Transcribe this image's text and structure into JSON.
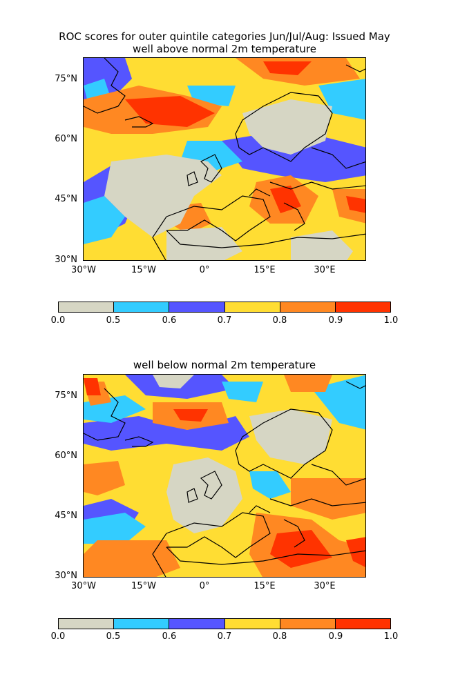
{
  "figure": {
    "suptitle": "ROC scores for outer quintile categories Jun/Jul/Aug: Issued May"
  },
  "panels": [
    {
      "title": "well above normal 2m temperature",
      "lat_ticks": [
        "75°N",
        "60°N",
        "45°N",
        "30°N"
      ],
      "lon_ticks": [
        "30°W",
        "15°W",
        "0°",
        "15°E",
        "30°E"
      ]
    },
    {
      "title": "well below normal 2m temperature",
      "lat_ticks": [
        "75°N",
        "60°N",
        "45°N",
        "30°N"
      ],
      "lon_ticks": [
        "30°W",
        "15°W",
        "0°",
        "15°E",
        "30°E"
      ]
    }
  ],
  "colorbar": {
    "labels": [
      "0.0",
      "0.5",
      "0.6",
      "0.7",
      "0.8",
      "0.9",
      "1.0"
    ],
    "colors": [
      "#d6d6c4",
      "#33ccff",
      "#5555ff",
      "#ffdd33",
      "#ff8822",
      "#ff3300"
    ]
  }
}
